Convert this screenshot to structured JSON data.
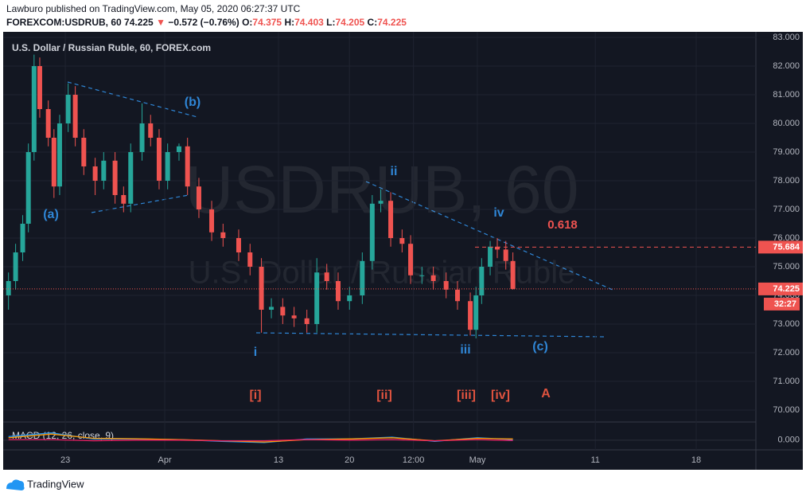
{
  "header": {
    "publisher": "Lawburo published on TradingView.com, May 05, 2020 06:27:37 UTC",
    "symbol": "FOREXCOM:USDRUB, 60",
    "last": "74.225",
    "arrow": "▼",
    "change": "−0.572 (−0.76%)",
    "ohlc": [
      {
        "label": "O:",
        "value": "74.375"
      },
      {
        "label": "H:",
        "value": "74.403"
      },
      {
        "label": "L:",
        "value": "74.205"
      },
      {
        "label": "C:",
        "value": "74.225"
      }
    ]
  },
  "footer": {
    "brand": "TradingView"
  },
  "chart_data": {
    "type": "candlestick",
    "title": "U.S. Dollar / Russian Ruble, 60, FOREX.com",
    "watermark": "USDRUB, 60",
    "watermark_subtitle": "U.S. Dollar / Russian Ruble",
    "up_color": "#26a69a",
    "down_color": "#ef5350",
    "x": [
      -4.0,
      -3.5,
      -3.0,
      -2.6,
      -2.2,
      -1.8,
      -1.2,
      -0.8,
      -0.4,
      0.2,
      0.7,
      1.3,
      2.1,
      2.7,
      3.5,
      4.1,
      4.6,
      5.4,
      6.0,
      6.6,
      7.2,
      8.0,
      8.6,
      9.4,
      10.3,
      11.1,
      12.2,
      13.0,
      13.8,
      14.5,
      15.3,
      16.1,
      17.0,
      17.7,
      18.4,
      19.2,
      20.0,
      20.9,
      21.6,
      22.2,
      22.9,
      23.7,
      24.3,
      25.1,
      25.9,
      26.8,
      27.6,
      28.5,
      28.9,
      29.3,
      29.9,
      30.4,
      31.0,
      31.5
    ],
    "open": [
      74.0,
      74.5,
      75.5,
      76.5,
      79.0,
      82.0,
      80.5,
      79.5,
      77.8,
      80.0,
      81.0,
      79.5,
      78.5,
      78.0,
      78.7,
      77.5,
      77.2,
      79.0,
      80.0,
      79.5,
      78.0,
      79.0,
      79.2,
      77.8,
      77.0,
      76.2,
      76.0,
      75.5,
      75.0,
      73.5,
      73.6,
      73.3,
      73.2,
      73.0,
      74.8,
      74.5,
      73.8,
      74.0,
      75.2,
      77.2,
      77.3,
      76.0,
      75.8,
      74.7,
      74.7,
      74.5,
      74.2,
      73.8,
      72.8,
      74.0,
      75.0,
      75.7,
      75.6,
      75.2
    ],
    "high": [
      74.8,
      75.8,
      76.8,
      79.3,
      82.4,
      82.3,
      80.8,
      79.8,
      80.3,
      81.4,
      81.3,
      79.8,
      78.8,
      79.0,
      79.0,
      77.8,
      79.3,
      80.7,
      80.3,
      79.8,
      79.3,
      79.3,
      79.5,
      78.1,
      77.3,
      76.5,
      76.3,
      75.8,
      75.3,
      73.9,
      73.9,
      73.6,
      73.5,
      75.3,
      75.1,
      74.8,
      74.3,
      75.5,
      77.5,
      77.7,
      77.6,
      76.3,
      76.1,
      75.0,
      75.0,
      74.8,
      74.5,
      74.1,
      74.3,
      75.3,
      75.9,
      76.0,
      75.9,
      75.5
    ],
    "low": [
      73.5,
      74.2,
      75.2,
      76.2,
      78.7,
      80.2,
      79.2,
      77.4,
      77.5,
      79.7,
      79.2,
      78.2,
      77.5,
      77.7,
      77.2,
      76.9,
      76.9,
      78.7,
      79.2,
      77.7,
      77.7,
      78.7,
      77.5,
      76.7,
      75.9,
      75.7,
      75.2,
      74.7,
      72.7,
      73.2,
      73.0,
      72.9,
      72.7,
      72.7,
      74.2,
      73.5,
      73.5,
      73.7,
      74.9,
      76.9,
      75.7,
      75.5,
      74.4,
      74.4,
      74.2,
      73.9,
      73.5,
      72.6,
      72.5,
      73.7,
      74.7,
      75.3,
      74.9,
      74.205
    ],
    "close": [
      74.5,
      75.5,
      76.5,
      79.0,
      82.0,
      80.5,
      79.5,
      77.8,
      80.0,
      81.0,
      79.5,
      78.5,
      78.0,
      78.7,
      77.5,
      77.2,
      79.0,
      80.0,
      79.5,
      78.0,
      79.0,
      79.2,
      77.8,
      77.0,
      76.2,
      76.0,
      75.5,
      75.0,
      73.5,
      73.6,
      73.3,
      73.2,
      73.0,
      74.8,
      74.5,
      73.8,
      74.0,
      75.2,
      77.2,
      77.3,
      76.0,
      75.8,
      74.7,
      74.7,
      74.5,
      74.2,
      73.8,
      72.8,
      74.0,
      75.0,
      75.7,
      75.6,
      75.2,
      74.225
    ],
    "xlim": [
      -4.15,
      48.6
    ],
    "xticks": [
      {
        "value": 0,
        "label": "23"
      },
      {
        "value": 7,
        "label": "Apr"
      },
      {
        "value": 15,
        "label": "13"
      },
      {
        "value": 20,
        "label": "20"
      },
      {
        "value": 24.5,
        "label": "12:00"
      },
      {
        "value": 29,
        "label": "May"
      },
      {
        "value": 37.3,
        "label": "11"
      },
      {
        "value": 44.4,
        "label": "18"
      }
    ],
    "ylim": [
      69.0,
      83.2
    ],
    "yticks": [
      {
        "value": 70,
        "label": "70.000"
      },
      {
        "value": 71,
        "label": "71.000"
      },
      {
        "value": 72,
        "label": "72.000"
      },
      {
        "value": 73,
        "label": "73.000"
      },
      {
        "value": 74,
        "label": "74.000"
      },
      {
        "value": 75,
        "label": "75.000"
      },
      {
        "value": 76,
        "label": "76.000"
      },
      {
        "value": 77,
        "label": "77.000"
      },
      {
        "value": 78,
        "label": "78.000"
      },
      {
        "value": 79,
        "label": "79.000"
      },
      {
        "value": 80,
        "label": "80.000"
      },
      {
        "value": 81,
        "label": "81.000"
      },
      {
        "value": 82,
        "label": "82.000"
      },
      {
        "value": 83,
        "label": "83.000"
      }
    ],
    "grid": true,
    "price_lines": [
      {
        "value": 75.684,
        "color": "#ef5350",
        "style": "dashed"
      },
      {
        "value": 74.225,
        "color": "#ef5350",
        "style": "dotted"
      }
    ],
    "countdown": "32:27",
    "annotations": [
      {
        "text": "(a)",
        "color": "#2f86d6"
      },
      {
        "text": "(b)",
        "color": "#2f86d6"
      },
      {
        "text": "i",
        "color": "#2f86d6"
      },
      {
        "text": "ii",
        "color": "#2f86d6"
      },
      {
        "text": "iii",
        "color": "#2f86d6"
      },
      {
        "text": "iv",
        "color": "#2f86d6"
      },
      {
        "text": "(c)",
        "color": "#2f86d6"
      },
      {
        "text": "0.618",
        "color": "#ef5350"
      },
      {
        "text": "[i]",
        "color": "#e0533f"
      },
      {
        "text": "[ii]",
        "color": "#e0533f"
      },
      {
        "text": "[iii]",
        "color": "#e0533f"
      },
      {
        "text": "[iv]",
        "color": "#e0533f"
      },
      {
        "text": "A",
        "color": "#e0533f"
      }
    ],
    "macd": {
      "label": "MACD (12, 26, close, 9)",
      "ylim": [
        -0.8,
        1.5
      ],
      "yticks": [
        {
          "value": 0,
          "label": "0.000"
        }
      ],
      "x": [
        -4,
        -1,
        2,
        5,
        8,
        11,
        14,
        17,
        20,
        23,
        26,
        29,
        31.5
      ],
      "series": [
        {
          "color": "#2196f3",
          "values": [
            0.3,
            0.6,
            0.1,
            0.1,
            0.05,
            -0.1,
            -0.2,
            0.1,
            0.1,
            0.25,
            -0.1,
            0.2,
            0.05
          ]
        },
        {
          "color": "#ff9800",
          "values": [
            0.2,
            0.5,
            0.15,
            0.12,
            0.05,
            -0.05,
            -0.15,
            0.05,
            0.1,
            0.2,
            -0.05,
            0.15,
            0.1
          ]
        },
        {
          "color": "#e91e63",
          "values": [
            0.05,
            0.05,
            -0.05,
            0.0,
            0.0,
            -0.05,
            -0.05,
            0.05,
            0.0,
            0.05,
            -0.05,
            0.05,
            -0.03
          ]
        }
      ]
    }
  }
}
